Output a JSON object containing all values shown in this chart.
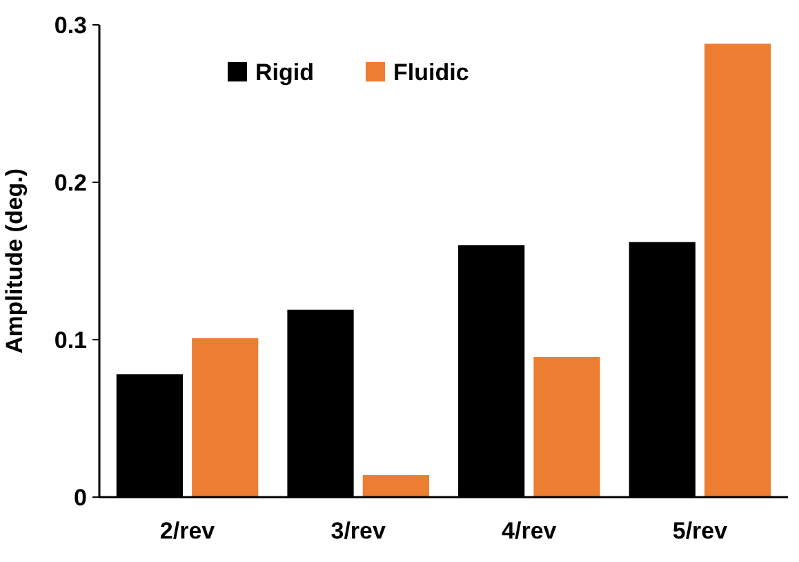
{
  "chart_data": {
    "type": "bar",
    "ylabel": "Amplitude (deg.)",
    "categories": [
      "2/rev",
      "3/rev",
      "4/rev",
      "5/rev"
    ],
    "series": [
      {
        "name": "Rigid",
        "color": "#000000",
        "values": [
          0.078,
          0.119,
          0.16,
          0.162
        ]
      },
      {
        "name": "Fluidic",
        "color": "#ed7d31",
        "values": [
          0.101,
          0.014,
          0.089,
          0.288
        ]
      }
    ],
    "ylim": [
      0,
      0.3
    ],
    "yticks": [
      0,
      0.1,
      0.2,
      0.3
    ],
    "legend": "top",
    "grid": false
  }
}
